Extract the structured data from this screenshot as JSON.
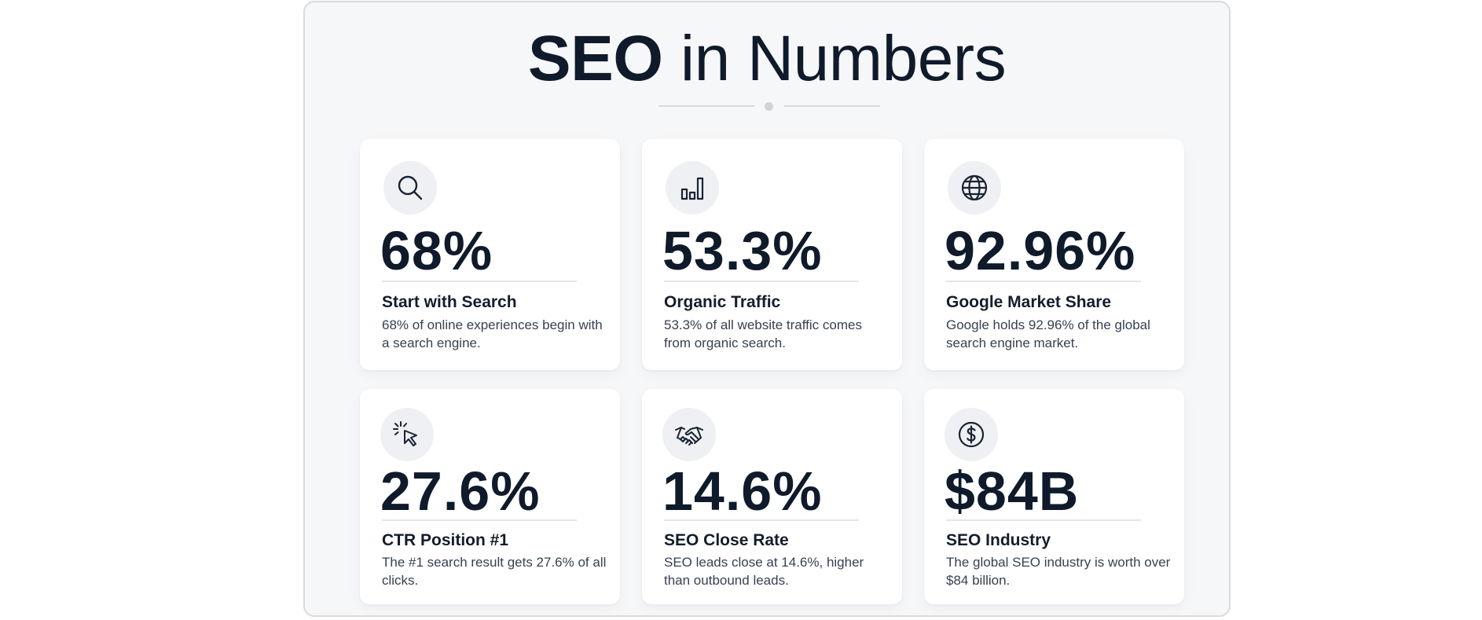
{
  "title": {
    "bold": "SEO",
    "rest": "in Numbers"
  },
  "cards": [
    {
      "icon": "search-icon",
      "value": "68%",
      "label": "Start with Search",
      "description": "68% of online experiences begin with a search engine."
    },
    {
      "icon": "bar-chart-icon",
      "value": "53.3%",
      "label": "Organic Traffic",
      "description": "53.3% of all website traffic comes from organic search."
    },
    {
      "icon": "globe-icon",
      "value": "92.96%",
      "label": "Google Market Share",
      "description": "Google holds 92.96% of the global search engine market."
    },
    {
      "icon": "cursor-click-icon",
      "value": "27.6%",
      "label": "CTR Position #1",
      "description": "The #1 search result gets 27.6% of all clicks."
    },
    {
      "icon": "handshake-icon",
      "value": "14.6%",
      "label": "SEO Close Rate",
      "description": "SEO leads close at 14.6%, higher than outbound leads."
    },
    {
      "icon": "dollar-icon",
      "value": "$84B",
      "label": "SEO Industry",
      "description": "The global SEO industry is worth over $84 billion."
    }
  ],
  "colors": {
    "text": "#0f1a2b",
    "background": "#f6f7f9",
    "card": "#ffffff",
    "icon_bg": "#eef0f3"
  }
}
